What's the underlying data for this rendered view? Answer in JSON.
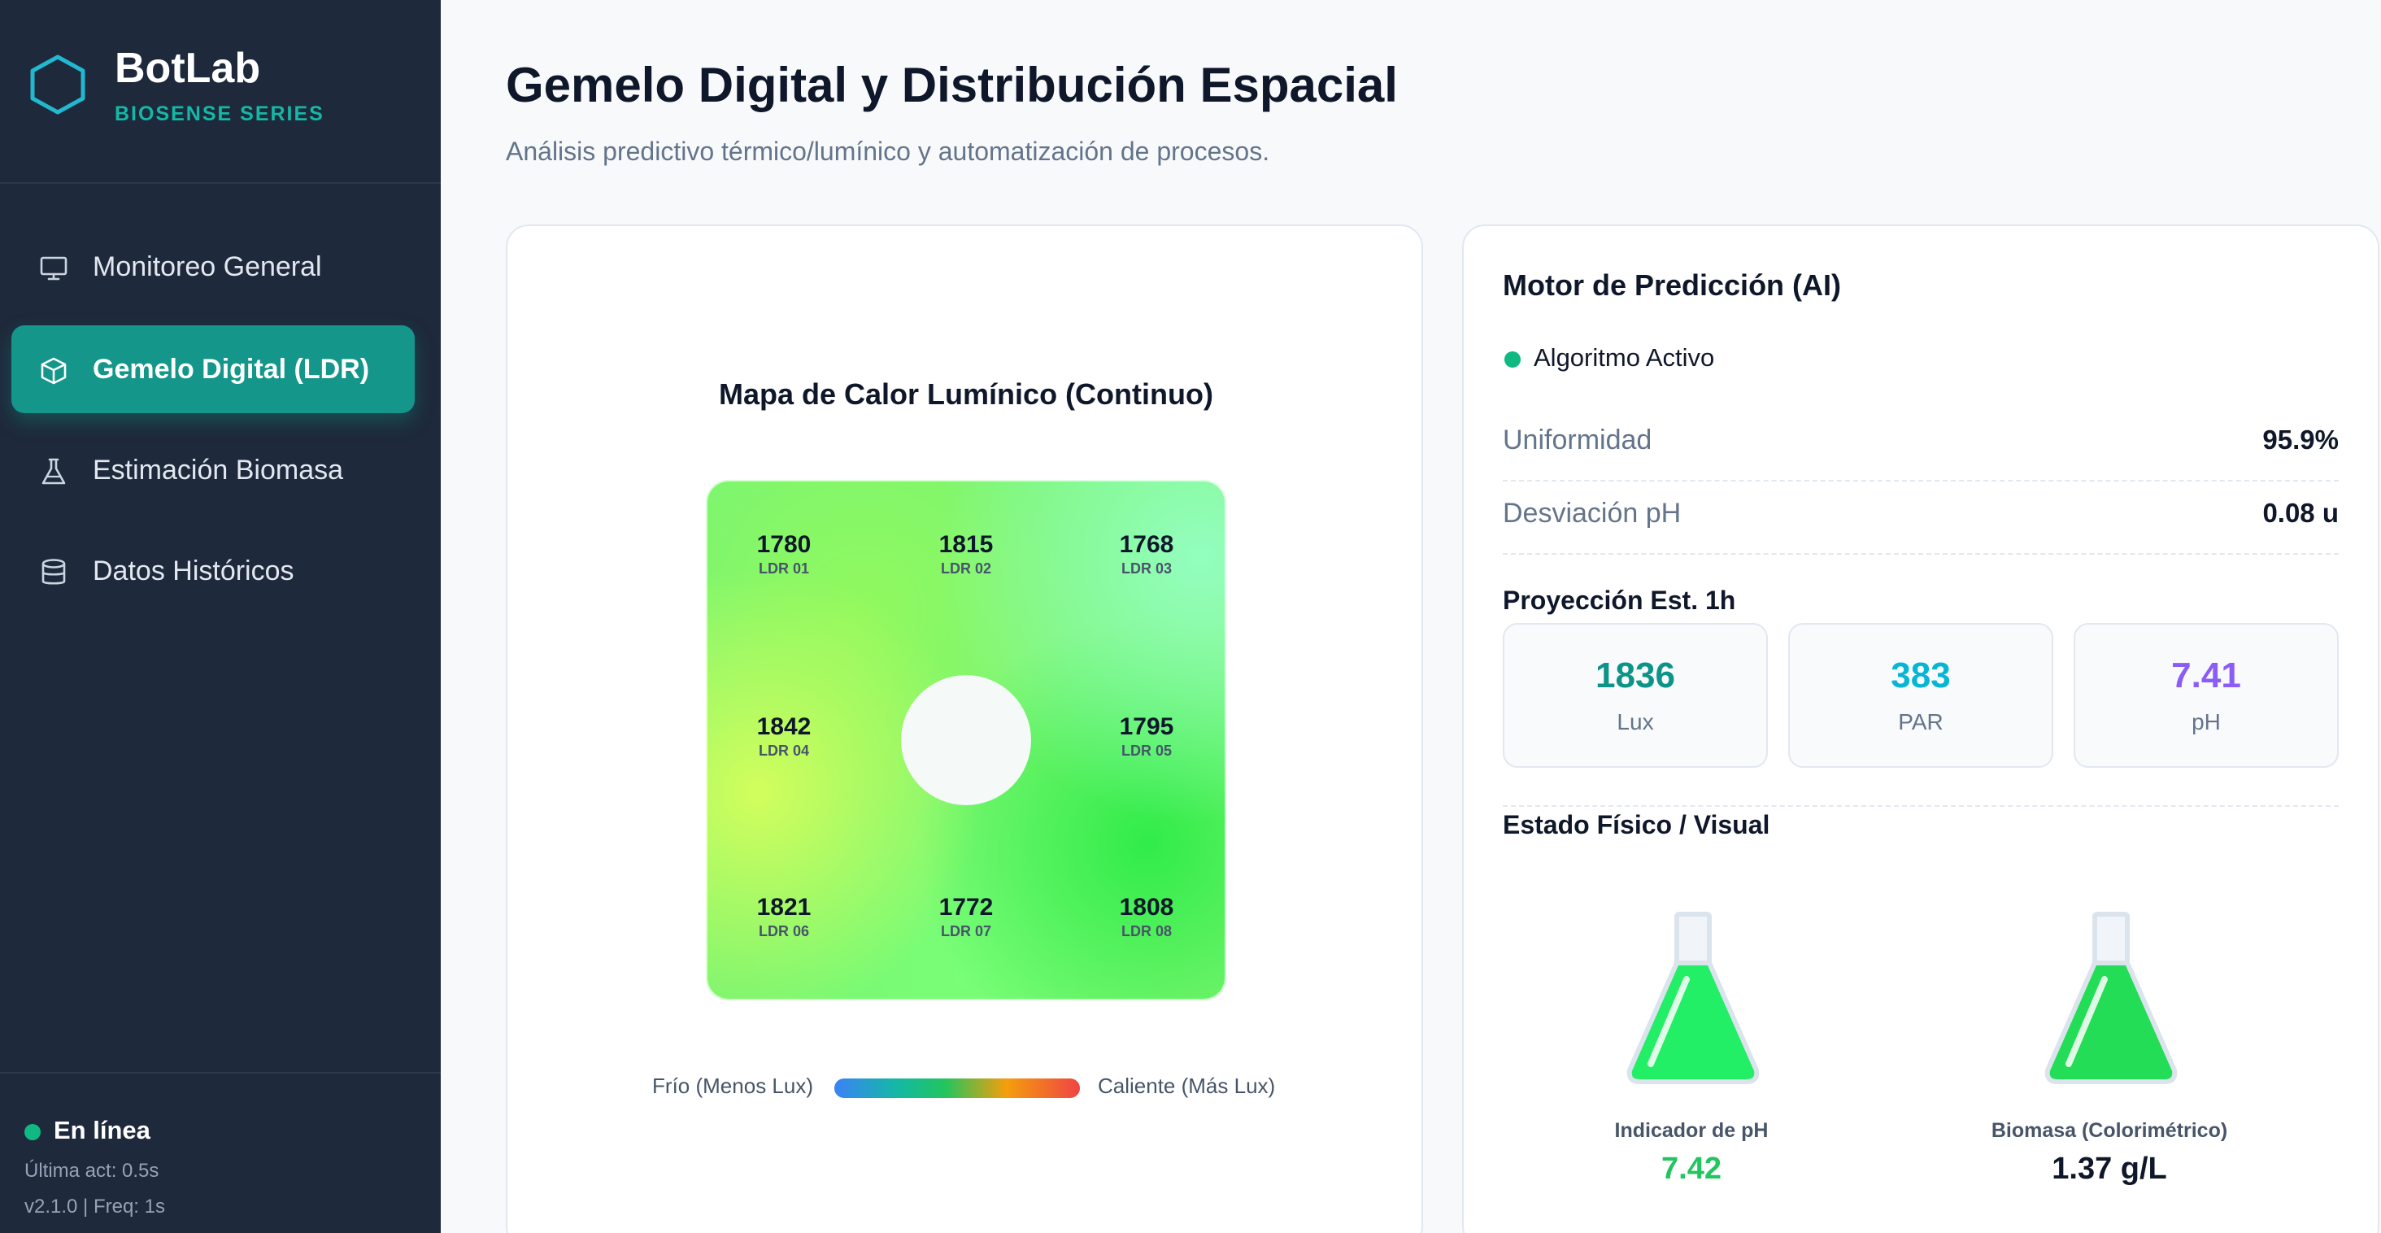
{
  "brand": {
    "title": "BotLab",
    "subtitle": "BIOSENSE SERIES"
  },
  "nav": [
    {
      "label": "Monitoreo General",
      "icon": "monitor-icon",
      "active": false
    },
    {
      "label": "Gemelo Digital (LDR)",
      "icon": "cube-icon",
      "active": true
    },
    {
      "label": "Estimación Biomasa",
      "icon": "flask-icon",
      "active": false
    },
    {
      "label": "Datos Históricos",
      "icon": "database-icon",
      "active": false
    }
  ],
  "footer": {
    "status": "En línea",
    "last_update": "Última act: 0.5s",
    "version": "v2.1.0 | Freq: 1s"
  },
  "header": {
    "title": "Gemelo Digital y Distribución Espacial",
    "subtitle": "Análisis predictivo térmico/lumínico y automatización de procesos."
  },
  "heatmap": {
    "title": "Mapa de Calor Lumínico (Continuo)",
    "sensors": [
      {
        "value": "1780",
        "id": "LDR 01"
      },
      {
        "value": "1815",
        "id": "LDR 02"
      },
      {
        "value": "1768",
        "id": "LDR 03"
      },
      {
        "value": "1842",
        "id": "LDR 04"
      },
      {
        "value": "1795",
        "id": "LDR 05"
      },
      {
        "value": "1821",
        "id": "LDR 06"
      },
      {
        "value": "1772",
        "id": "LDR 07"
      },
      {
        "value": "1808",
        "id": "LDR 08"
      }
    ],
    "legend": {
      "cold": "Frío (Menos Lux)",
      "hot": "Caliente (Más Lux)"
    }
  },
  "ai": {
    "title": "Motor de Predicción (AI)",
    "status": "Algoritmo Activo",
    "metrics": [
      {
        "label": "Uniformidad",
        "value": "95.9%"
      },
      {
        "label": "Desviación pH",
        "value": "0.08 u"
      }
    ],
    "projection_title": "Proyección Est. 1h",
    "projections": [
      {
        "value": "1836",
        "label": "Lux",
        "color": "#0d9488"
      },
      {
        "value": "383",
        "label": "PAR",
        "color": "#06b6d4"
      },
      {
        "value": "7.41",
        "label": "pH",
        "color": "#8b5cf6"
      }
    ],
    "physical_title": "Estado Físico / Visual",
    "indicators": [
      {
        "label": "Indicador de pH",
        "value": "7.42",
        "liquid_color": "#22ee66",
        "value_color": "#22c55e"
      },
      {
        "label": "Biomasa (Colorimétrico)",
        "value": "1.37 g/L",
        "liquid_color": "#22dd55",
        "value_color": "#0f172a"
      }
    ]
  },
  "colors": {
    "sidebar_bg": "#1e293b",
    "accent": "#14968b",
    "online": "#10b981"
  }
}
